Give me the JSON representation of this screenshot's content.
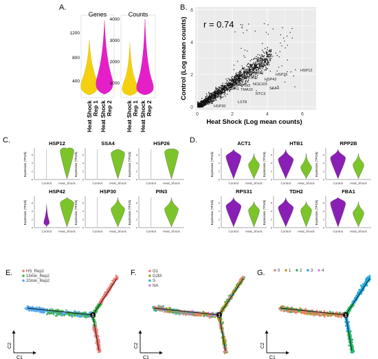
{
  "panel_a": {
    "label": "A.",
    "genes_title": "Genes",
    "counts_title": "Counts",
    "genes_ticks": [
      "1200",
      "800",
      "400"
    ],
    "counts_ticks": [
      "4000",
      "3000",
      "2000",
      "1000"
    ],
    "rep1_label_line1": "Heat Shock",
    "rep1_label_line2": "Rep 1",
    "rep2_label_line1": "Heat Shock",
    "rep2_label_line2": "Rep 2",
    "colors": {
      "rep1": "#f5d00f",
      "rep2": "#e51fc8"
    }
  },
  "panel_b": {
    "label": "B.",
    "r_text": "r = 0.74",
    "xlabel": "Heat Shock (Log mean counts)",
    "ylabel": "Control (Log mean counts)",
    "x_ticks": [
      "0",
      "2",
      "4",
      "6"
    ],
    "y_ticks": [
      "0",
      "2",
      "4",
      "6"
    ],
    "gene_labels": [
      "HSP12",
      "HSP26",
      "HSP42",
      "KAR2",
      "BTN2",
      "NCE103",
      "SSA4",
      "RTC3",
      "TMA10",
      "PIR1",
      "ROM2",
      "PIN3",
      "SPI1",
      "LST8",
      "HSP30"
    ]
  },
  "panel_c": {
    "label": "C.",
    "genes": [
      "HSP12",
      "SSA4",
      "HSP26",
      "HSP42",
      "HSP30",
      "PIN3"
    ],
    "ylabel": "Expression (TP10k)",
    "x_labels": [
      "Control",
      "Heat_Shock"
    ],
    "color": "#7cc42a"
  },
  "panel_d": {
    "label": "D.",
    "genes": [
      "ACT1",
      "HTB1",
      "RPP2B",
      "RPS31",
      "TDH2",
      "FBA1"
    ],
    "ylabel": "Expression (TP10k)",
    "x_labels": [
      "Control",
      "Heat_Shock"
    ],
    "colors": {
      "control": "#8a1fb5",
      "heat_shock": "#7cc42a"
    }
  },
  "panel_e": {
    "label": "E.",
    "legend": [
      "HS_Rep2",
      "15min_Rep2",
      "20min_Rep2"
    ],
    "colors": [
      "#f07c74",
      "#3fb24a",
      "#52a8f0"
    ],
    "axis_x": "C1",
    "axis_y": "C2",
    "node": "1"
  },
  "panel_f": {
    "label": "F.",
    "legend": [
      "G1",
      "G2M",
      "S",
      "NA"
    ],
    "colors": [
      "#f07c74",
      "#8aa21f",
      "#26b8b0",
      "#c07ef0"
    ],
    "axis_x": "C1",
    "axis_y": "C2",
    "node": "1"
  },
  "panel_g": {
    "label": "G.",
    "legend": [
      "0",
      "1",
      "2",
      "3",
      "4"
    ],
    "colors": [
      "#f07c74",
      "#b2a020",
      "#26b86a",
      "#20a8e0",
      "#e07ef0"
    ],
    "axis_x": "C1",
    "axis_y": "C2",
    "node": "1"
  }
}
